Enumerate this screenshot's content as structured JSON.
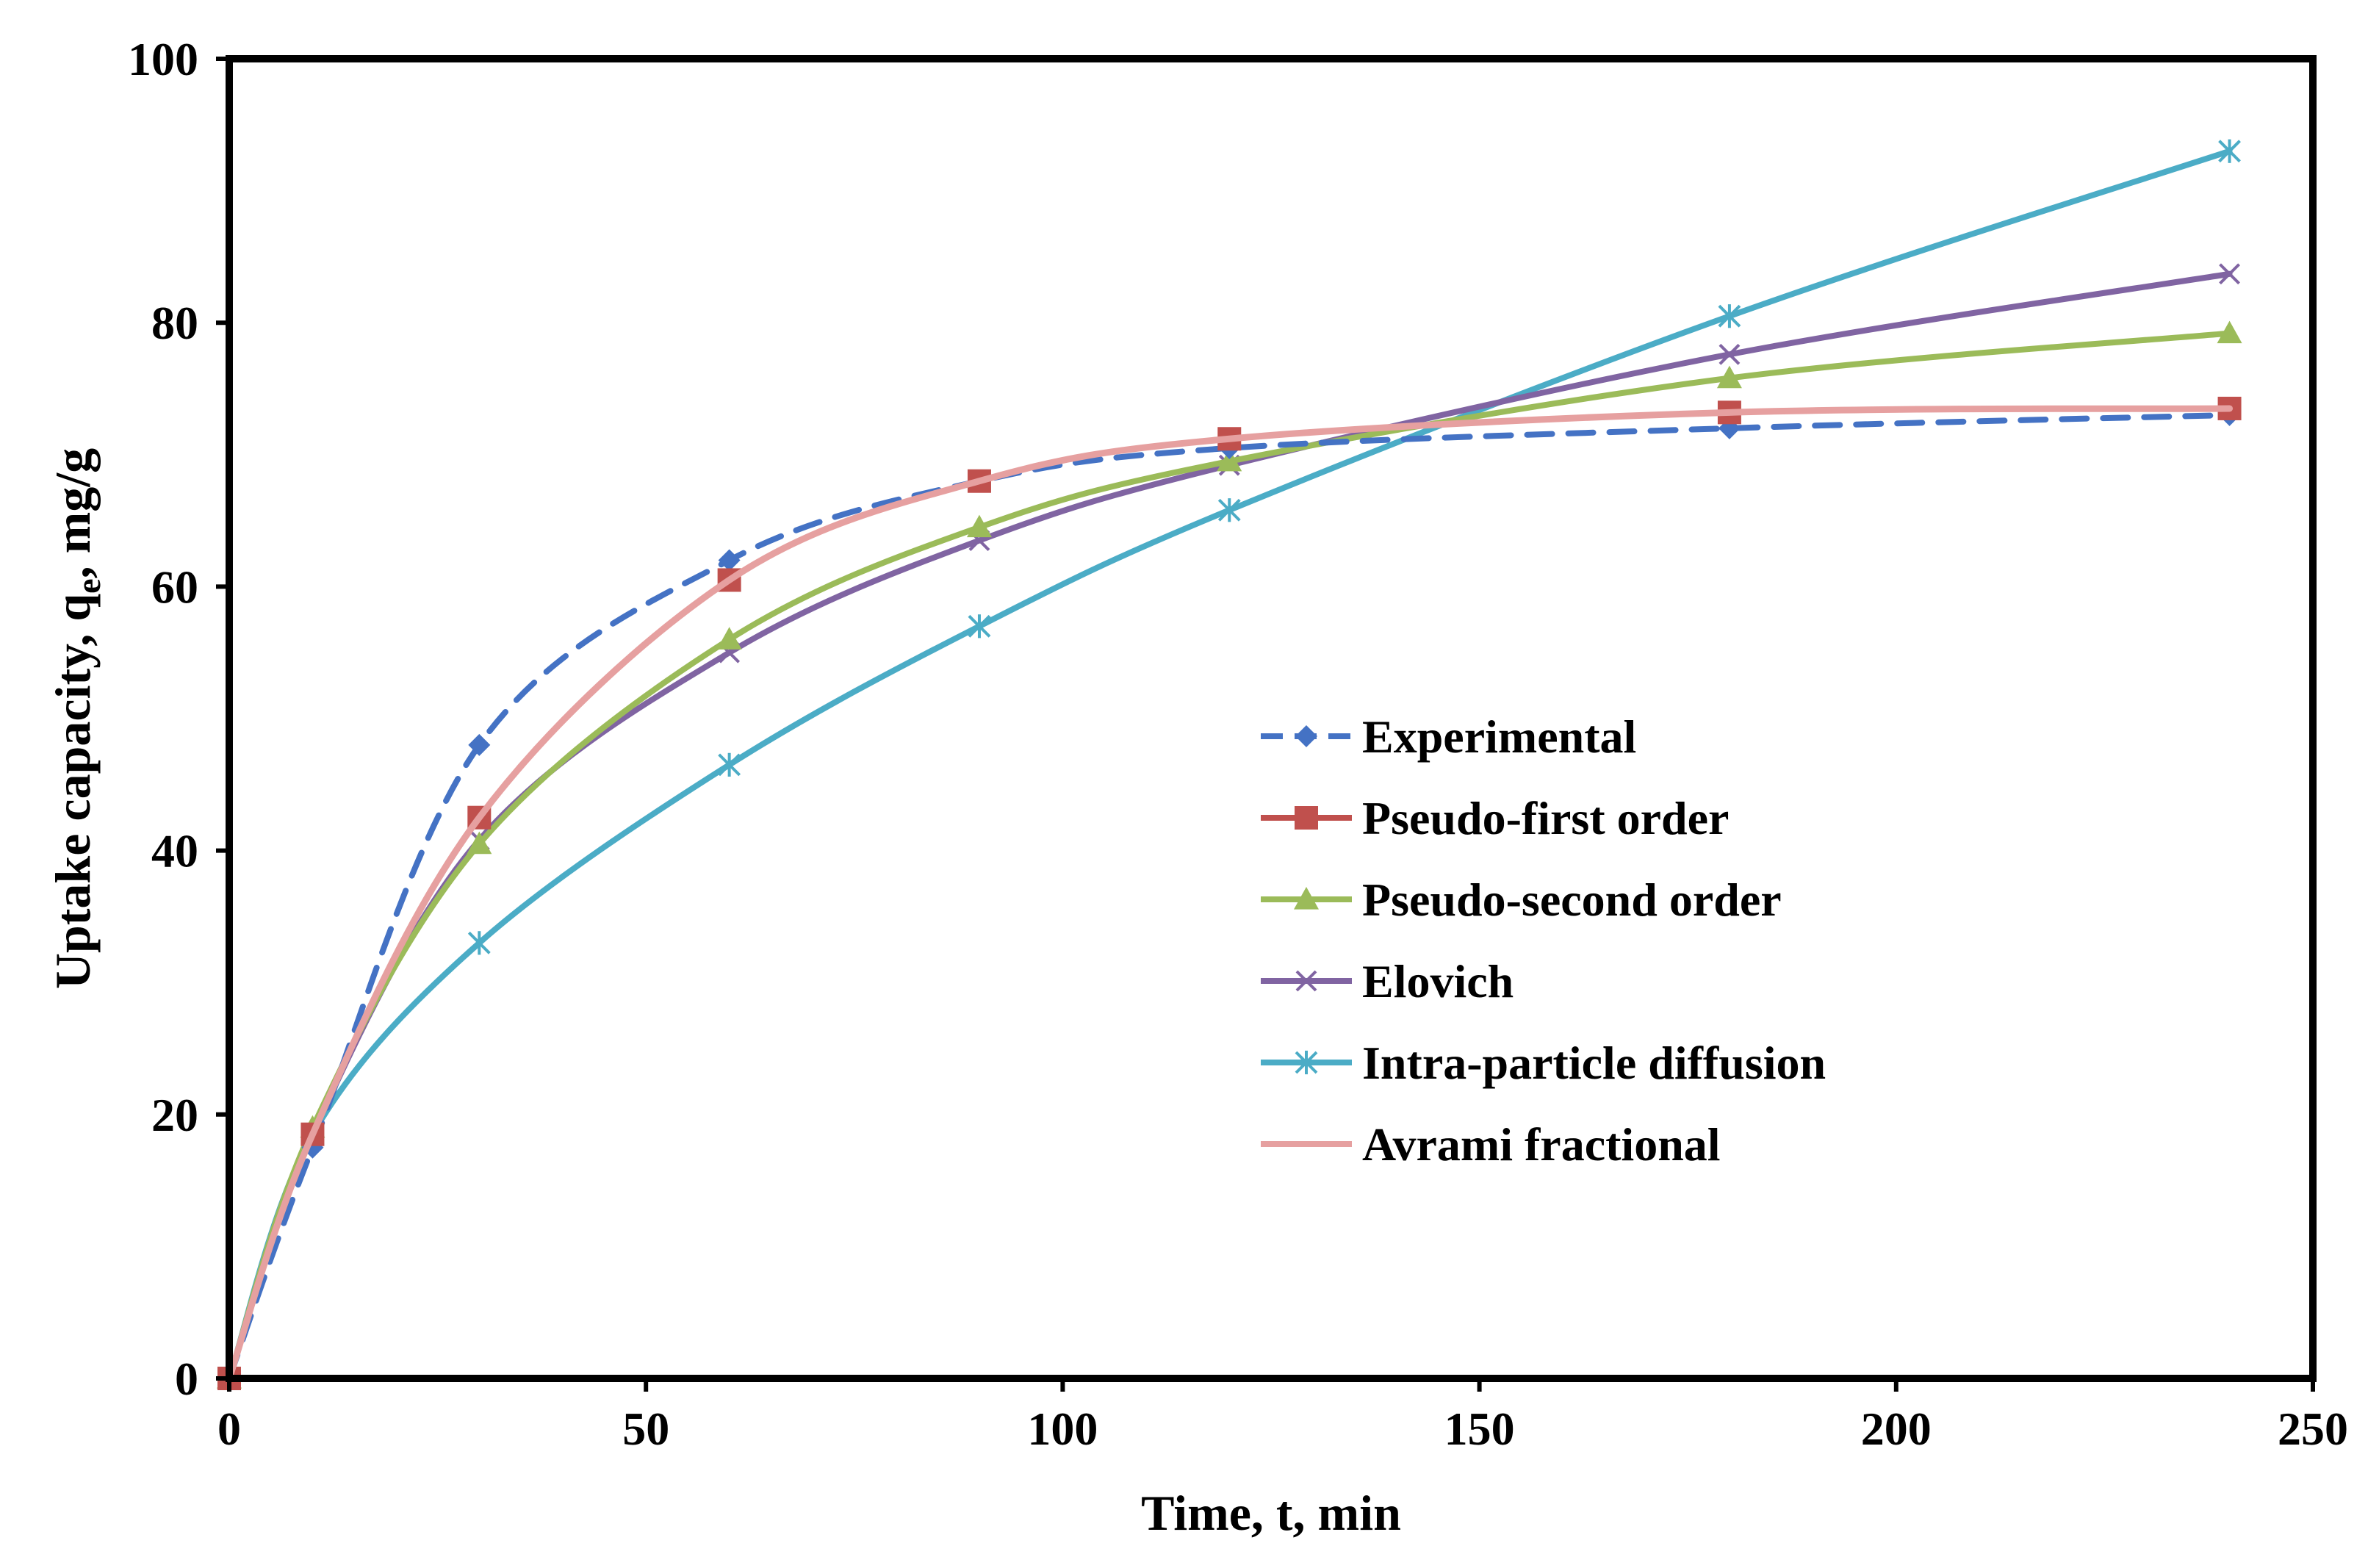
{
  "chart_data": {
    "type": "line",
    "title": "",
    "xlabel": "Time, t, min",
    "ylabel_main": "Uptake capacity, q",
    "ylabel_subscript": "e",
    "ylabel_unit": ",  mg/g",
    "xlim": [
      0,
      250
    ],
    "ylim": [
      0,
      100
    ],
    "x_ticks": [
      0,
      50,
      100,
      150,
      200,
      250
    ],
    "y_ticks": [
      0,
      20,
      40,
      60,
      80,
      100
    ],
    "x_tick_labels": [
      "0",
      "50",
      "100",
      "150",
      "200",
      "250"
    ],
    "y_tick_labels": [
      "0",
      "20",
      "40",
      "60",
      "80",
      "100"
    ],
    "grid": false,
    "legend_position": "center-right",
    "x": [
      0,
      10,
      30,
      60,
      90,
      120,
      180,
      240
    ],
    "series": [
      {
        "name": "Experimental",
        "color": "#4472C4",
        "dash": true,
        "marker": "diamond",
        "smooth": true,
        "values": [
          0,
          17.5,
          48,
          62,
          68,
          70.5,
          72,
          73
        ]
      },
      {
        "name": "Pseudo-first order",
        "color": "#C0504D",
        "dash": false,
        "marker": "square",
        "smooth": true,
        "values": [
          0,
          18.5,
          42.5,
          60.5,
          68,
          71.2,
          73.2,
          73.5
        ]
      },
      {
        "name": "Pseudo-second order",
        "color": "#9BBB59",
        "dash": false,
        "marker": "triangle",
        "smooth": true,
        "values": [
          0,
          19,
          40.5,
          56,
          64.5,
          69.5,
          75.8,
          79.2
        ]
      },
      {
        "name": "Elovich",
        "color": "#8064A2",
        "dash": false,
        "marker": "x",
        "smooth": true,
        "values": [
          0,
          18.5,
          40.8,
          55,
          63.5,
          69.2,
          77.6,
          83.7
        ]
      },
      {
        "name": "Intra-particle diffusion",
        "color": "#4BACC6",
        "dash": false,
        "marker": "asterisk",
        "smooth": true,
        "values": [
          0,
          18.5,
          33,
          46.5,
          57,
          65.8,
          80.5,
          93
        ]
      },
      {
        "name": "Avrami fractional",
        "color": "#E6A0A0",
        "dash": false,
        "marker": "none",
        "smooth": true,
        "values": [
          0,
          18.5,
          42.5,
          60.5,
          68,
          71.2,
          73.2,
          73.5
        ]
      }
    ]
  }
}
